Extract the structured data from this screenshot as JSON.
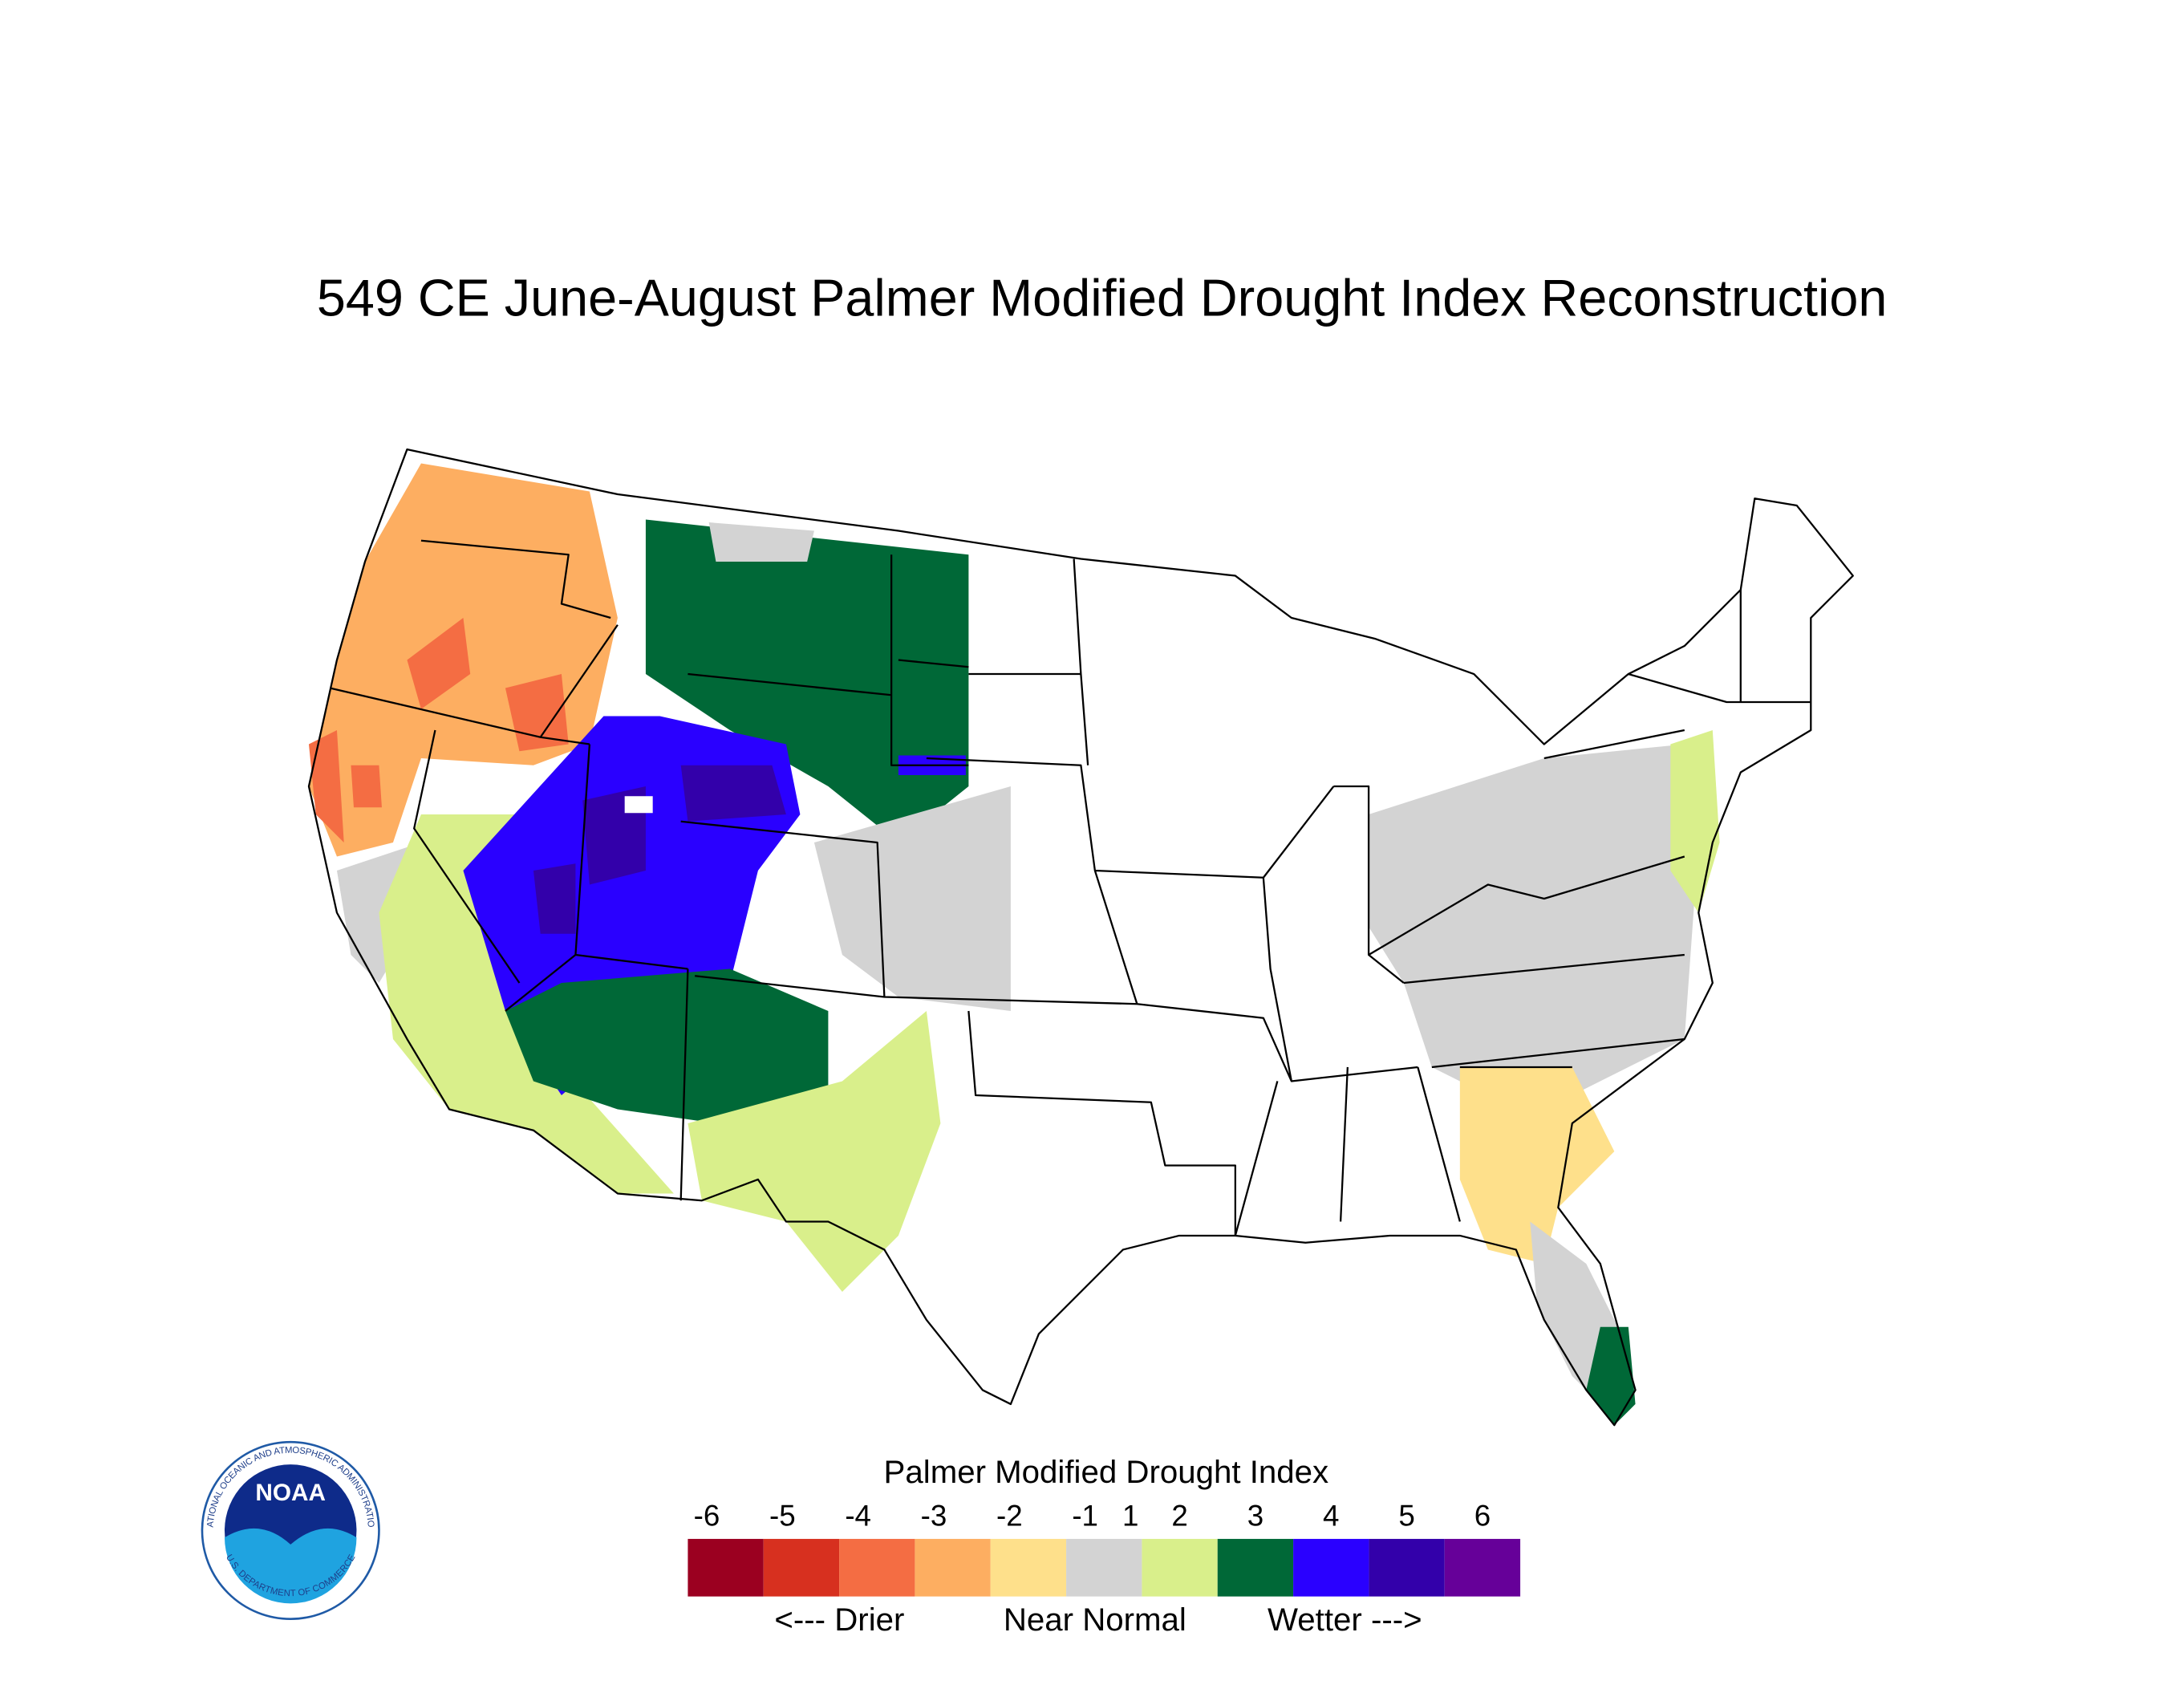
{
  "title": "549 CE  June-August  Palmer Modified Drought Index Reconstruction",
  "legend": {
    "title": "Palmer Modified Drought Index",
    "ticks": [
      -6,
      -5,
      -4,
      -3,
      -2,
      -1,
      1,
      2,
      3,
      4,
      5,
      6
    ],
    "colors": [
      "#9b0020",
      "#d7301f",
      "#f46d43",
      "#fdae61",
      "#fee08b",
      "#d3d3d3",
      "#d9ef8b",
      "#006837",
      "#2a00ff",
      "#3300aa",
      "#660099"
    ],
    "labels": [
      "<--- Drier",
      "Near Normal",
      "Wetter --->"
    ]
  },
  "logo": {
    "name": "NOAA",
    "ring_top": "NATIONAL OCEANIC AND ATMOSPHERIC ADMINISTRATION",
    "ring_bottom": "U.S. DEPARTMENT OF COMMERCE"
  }
}
